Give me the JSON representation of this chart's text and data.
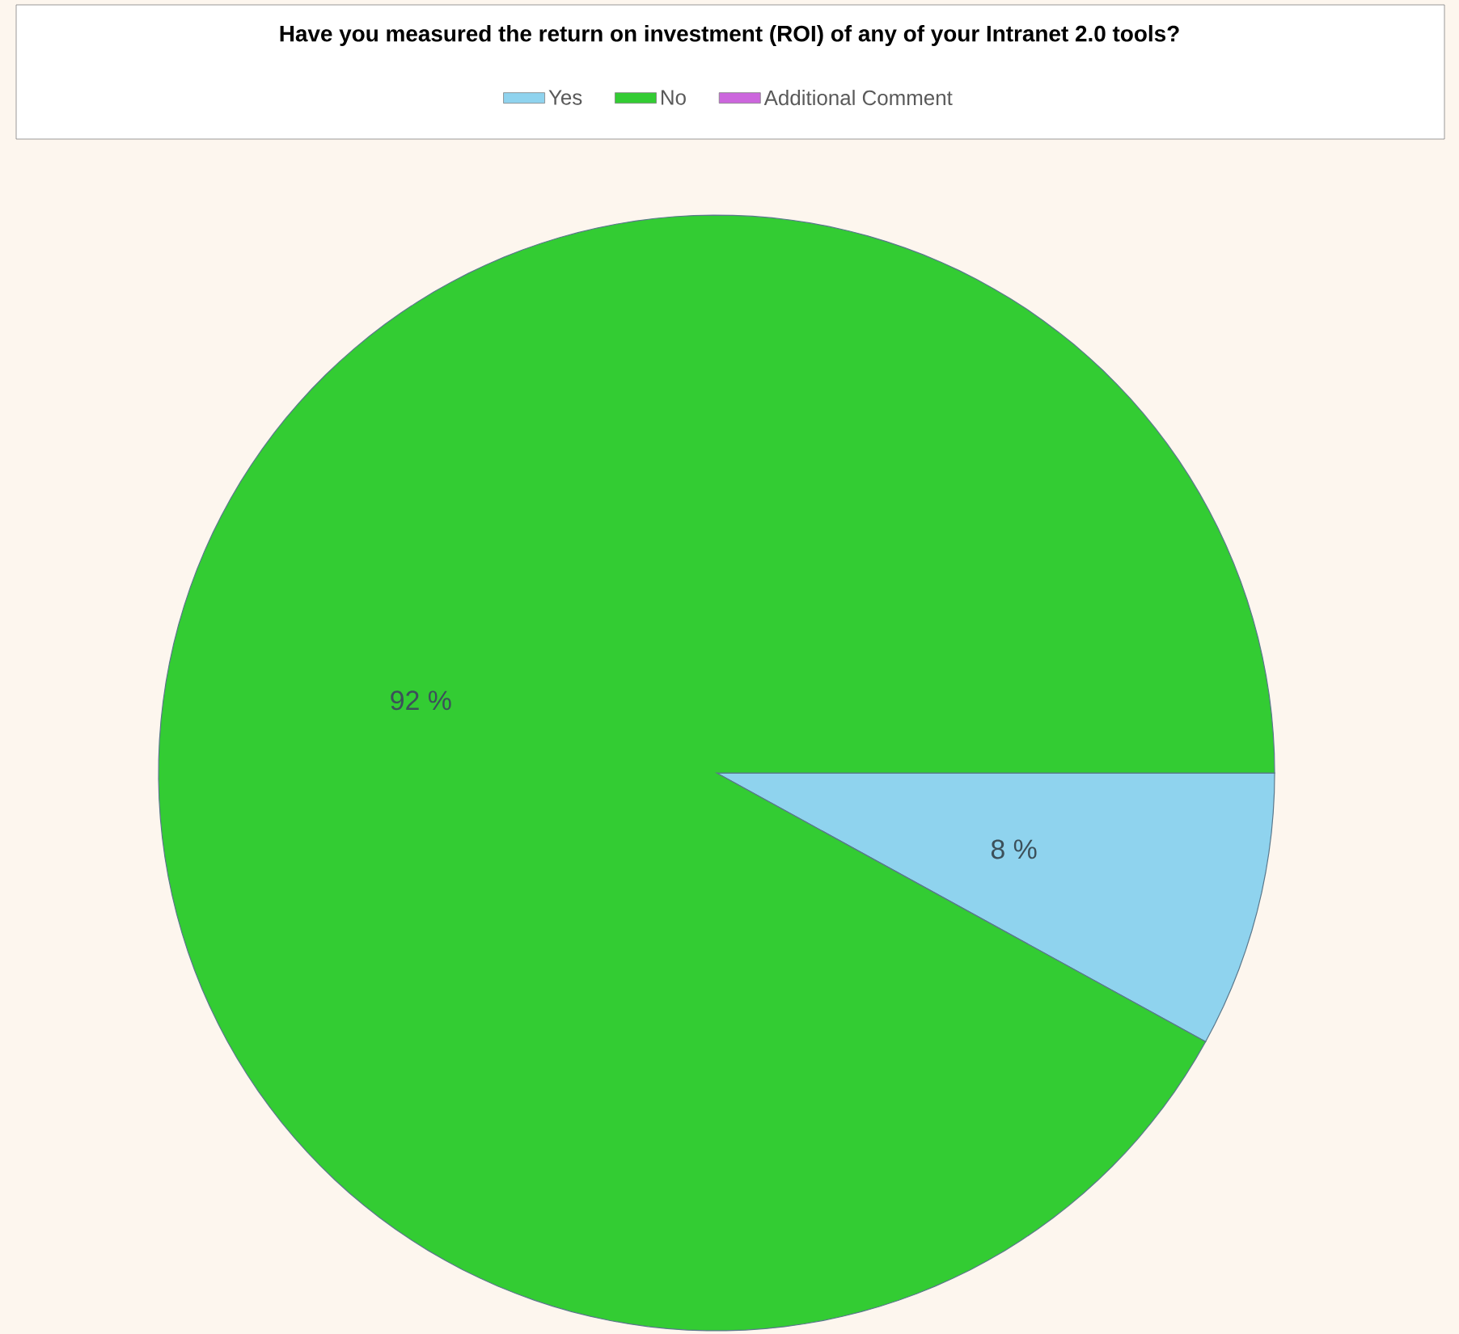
{
  "chart_data": {
    "type": "pie",
    "title": "Have you measured the return on investment (ROI) of any of your Intranet 2.0 tools?",
    "categories": [
      "Yes",
      "No",
      "Additional Comment"
    ],
    "values": [
      8,
      92,
      0
    ],
    "colors": [
      "#8fd3ee",
      "#33cc33",
      "#cc66dd"
    ],
    "value_labels": [
      "8 %",
      "92 %",
      null
    ],
    "legend": "top"
  }
}
